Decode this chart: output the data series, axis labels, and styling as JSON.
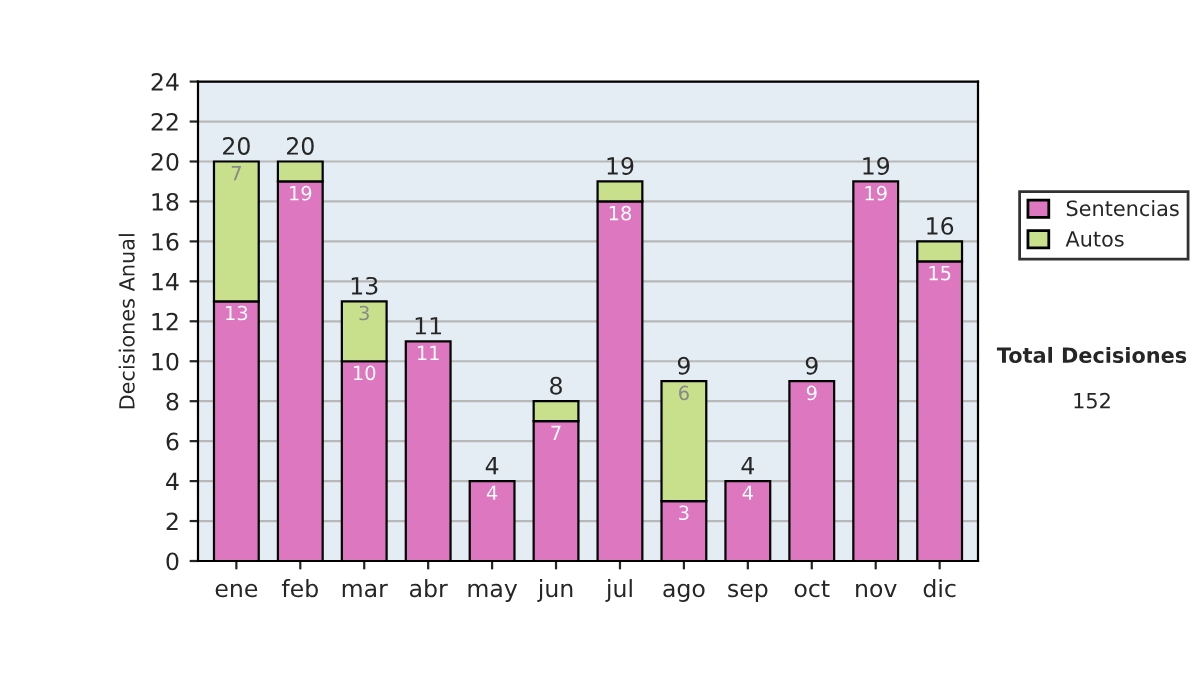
{
  "chart_data": {
    "type": "bar",
    "stacked": true,
    "ylabel": "Decisiones Anual",
    "categories": [
      "ene",
      "feb",
      "mar",
      "abr",
      "may",
      "jun",
      "jul",
      "ago",
      "sep",
      "oct",
      "nov",
      "dic"
    ],
    "series": [
      {
        "name": "Sentencias",
        "color": "#dd77c0",
        "values": [
          13,
          19,
          10,
          11,
          4,
          7,
          18,
          3,
          4,
          9,
          19,
          15
        ],
        "value_labels": [
          "13",
          "19",
          "10",
          "11",
          "4",
          "7",
          "18",
          "3",
          "4",
          "9",
          "19",
          "15"
        ]
      },
      {
        "name": "Autos",
        "color": "#c8e08c",
        "values": [
          7,
          1,
          3,
          null,
          null,
          1,
          1,
          6,
          null,
          null,
          null,
          1
        ],
        "value_labels": [
          "7",
          null,
          "3",
          null,
          null,
          null,
          null,
          "6",
          null,
          null,
          null,
          null
        ]
      }
    ],
    "totals": [
      "20",
      "20",
      "13",
      "11",
      "4",
      "8",
      "19",
      "9",
      "4",
      "9",
      "19",
      "16"
    ],
    "ylim": [
      0,
      24
    ],
    "yticks": [
      0,
      2,
      4,
      6,
      8,
      10,
      12,
      14,
      16,
      18,
      20,
      22,
      24
    ],
    "grid": "y",
    "legend": "right",
    "annotations": [
      "Total Decisiones",
      "152"
    ]
  }
}
